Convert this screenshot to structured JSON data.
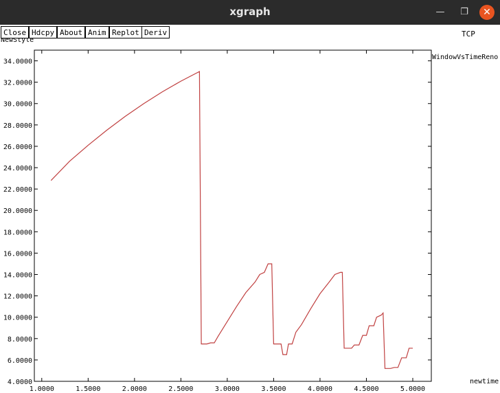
{
  "window": {
    "title": "xgraph",
    "min_glyph": "—",
    "max_glyph": "❐",
    "close_glyph": "✕"
  },
  "toolbar": {
    "close_label": "Close",
    "hdcpy_label": "Hdcpy",
    "about_label": "About",
    "anim_label": "Anim",
    "replot_label": "Replot",
    "deriv_label": "Deriv"
  },
  "graph_title": "TCP",
  "chart_data": {
    "type": "line",
    "ylabel": "NewStyle",
    "xlabel": "newtime",
    "xlim": [
      0.92,
      5.2
    ],
    "ylim": [
      4.0,
      35.0
    ],
    "x_ticks": [
      "1.0000",
      "1.5000",
      "2.0000",
      "2.5000",
      "3.0000",
      "3.5000",
      "4.0000",
      "4.5000",
      "5.0000"
    ],
    "y_ticks": [
      "4.0000",
      "6.0000",
      "8.0000",
      "10.0000",
      "12.0000",
      "14.0000",
      "16.0000",
      "18.0000",
      "20.0000",
      "22.0000",
      "24.0000",
      "26.0000",
      "28.0000",
      "30.0000",
      "32.0000",
      "34.0000"
    ],
    "grid": false,
    "series": [
      {
        "name": "WindowVsTimeReno",
        "color": "#c04040",
        "points": [
          [
            1.1,
            22.8
          ],
          [
            1.3,
            24.6
          ],
          [
            1.5,
            26.1
          ],
          [
            1.7,
            27.5
          ],
          [
            1.9,
            28.8
          ],
          [
            2.1,
            30.0
          ],
          [
            2.3,
            31.1
          ],
          [
            2.5,
            32.1
          ],
          [
            2.7,
            33.0
          ],
          [
            2.72,
            7.5
          ],
          [
            2.78,
            7.5
          ],
          [
            2.82,
            7.6
          ],
          [
            2.86,
            7.6
          ],
          [
            2.9,
            8.2
          ],
          [
            3.0,
            9.6
          ],
          [
            3.1,
            11.0
          ],
          [
            3.2,
            12.3
          ],
          [
            3.3,
            13.3
          ],
          [
            3.35,
            14.0
          ],
          [
            3.4,
            14.2
          ],
          [
            3.44,
            15.0
          ],
          [
            3.48,
            15.0
          ],
          [
            3.5,
            7.5
          ],
          [
            3.58,
            7.5
          ],
          [
            3.6,
            6.5
          ],
          [
            3.64,
            6.5
          ],
          [
            3.66,
            7.5
          ],
          [
            3.7,
            7.5
          ],
          [
            3.74,
            8.6
          ],
          [
            3.8,
            9.3
          ],
          [
            3.9,
            10.8
          ],
          [
            4.0,
            12.2
          ],
          [
            4.1,
            13.3
          ],
          [
            4.16,
            14.0
          ],
          [
            4.22,
            14.2
          ],
          [
            4.24,
            14.2
          ],
          [
            4.26,
            7.1
          ],
          [
            4.3,
            7.1
          ],
          [
            4.34,
            7.1
          ],
          [
            4.37,
            7.4
          ],
          [
            4.42,
            7.4
          ],
          [
            4.46,
            8.3
          ],
          [
            4.5,
            8.3
          ],
          [
            4.53,
            9.2
          ],
          [
            4.58,
            9.2
          ],
          [
            4.61,
            10.0
          ],
          [
            4.66,
            10.2
          ],
          [
            4.68,
            10.4
          ],
          [
            4.7,
            5.2
          ],
          [
            4.76,
            5.2
          ],
          [
            4.8,
            5.3
          ],
          [
            4.84,
            5.3
          ],
          [
            4.88,
            6.2
          ],
          [
            4.93,
            6.2
          ],
          [
            4.96,
            7.1
          ],
          [
            5.0,
            7.1
          ]
        ]
      }
    ]
  }
}
